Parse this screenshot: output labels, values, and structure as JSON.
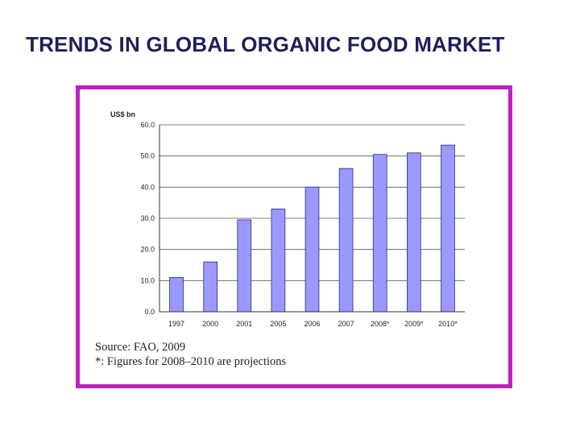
{
  "slide": {
    "title": "TRENDS IN GLOBAL ORGANIC FOOD MARKET",
    "accent_color": "#c020c0",
    "title_color": "#1f1f5c"
  },
  "chart_data": {
    "type": "bar",
    "unit_label": "US$ bn",
    "categories": [
      "1997",
      "2000",
      "2001",
      "2005",
      "2006",
      "2007",
      "2008*",
      "2009*",
      "2010*"
    ],
    "values": [
      11.0,
      16.0,
      29.5,
      33.0,
      40.0,
      46.0,
      50.5,
      51.0,
      53.5
    ],
    "ylim": [
      0,
      60
    ],
    "yticks": [
      "0.0",
      "10.0",
      "20.0",
      "30.0",
      "40.0",
      "50.0",
      "60.0"
    ],
    "grid": true,
    "bar_color": "#9999ff",
    "source": "Source: FAO, 2009",
    "footnote": "*: Figures for 2008–2010 are projections"
  }
}
